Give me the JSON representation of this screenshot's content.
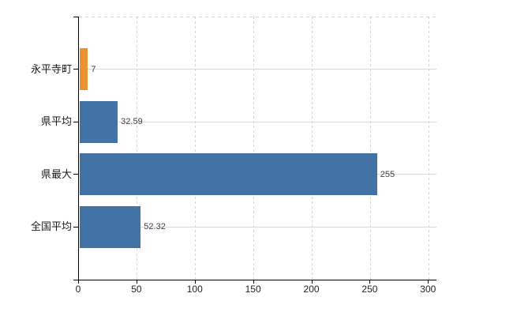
{
  "chart_data": {
    "type": "bar",
    "orientation": "horizontal",
    "title": "",
    "xlabel": "",
    "ylabel": "",
    "categories": [
      "永平寺町",
      "県平均",
      "県最大",
      "全国平均"
    ],
    "values": [
      7,
      32.59,
      255,
      52.32
    ],
    "value_labels": [
      "7",
      "32.59",
      "255",
      "52.32"
    ],
    "bar_colors": [
      "#eb9234",
      "#4372a7",
      "#4372a7",
      "#4372a7"
    ],
    "xlim": [
      0,
      300
    ],
    "x_ticks": [
      0,
      50,
      100,
      150,
      200,
      250,
      300
    ],
    "x_tick_labels": [
      "0",
      "50",
      "100",
      "150",
      "200",
      "250",
      "300"
    ],
    "grid": "on",
    "legend": "none"
  },
  "colors": {
    "background": "#ffffff",
    "axis": "#000000",
    "grid_horizontal": "#d9d9d9",
    "grid_vertical": "#d8d4ce",
    "bar_highlight_orange": "#eb9234",
    "bar_default_blue": "#4372a7",
    "value_label_text": "#404040",
    "tick_label_text": "#222222"
  }
}
